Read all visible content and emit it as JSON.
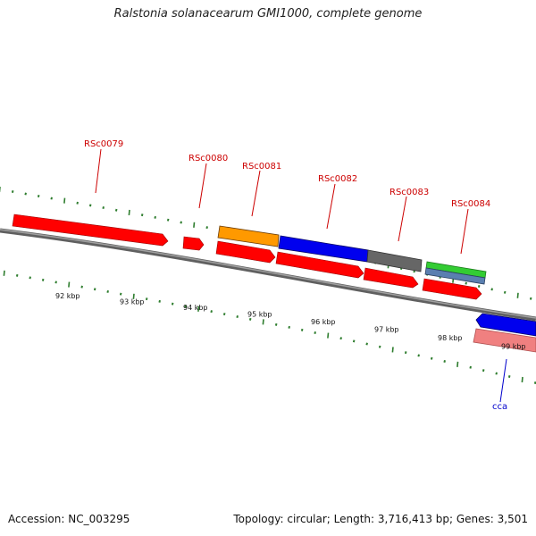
{
  "header": {
    "title": "Ralstonia solanacearum GMI1000, complete genome"
  },
  "footer": {
    "accession": "Accession: NC_003295",
    "summary": "Topology: circular; Length: 3,716,413 bp; Genes: 3,501"
  },
  "colors": {
    "backbone": "#808080",
    "tick": "#2e7d2e",
    "gene_label": "#cc0000",
    "rna_label": "#0000cc",
    "cds": "#ff0000",
    "cds_light": "#f08080",
    "orange": "#ff9900",
    "blue": "#0000ee",
    "gray": "#666666",
    "green": "#33cc33",
    "steel": "#5a7fb0"
  },
  "scale": {
    "unit": "kbp",
    "ticks": [
      92,
      93,
      94,
      95,
      96,
      97,
      98,
      99
    ]
  },
  "gene_labels": [
    "RSc0079",
    "RSc0080",
    "RSc0081",
    "RSc0082",
    "RSc0083",
    "RSc0084"
  ],
  "rna_labels": [
    "cca"
  ]
}
